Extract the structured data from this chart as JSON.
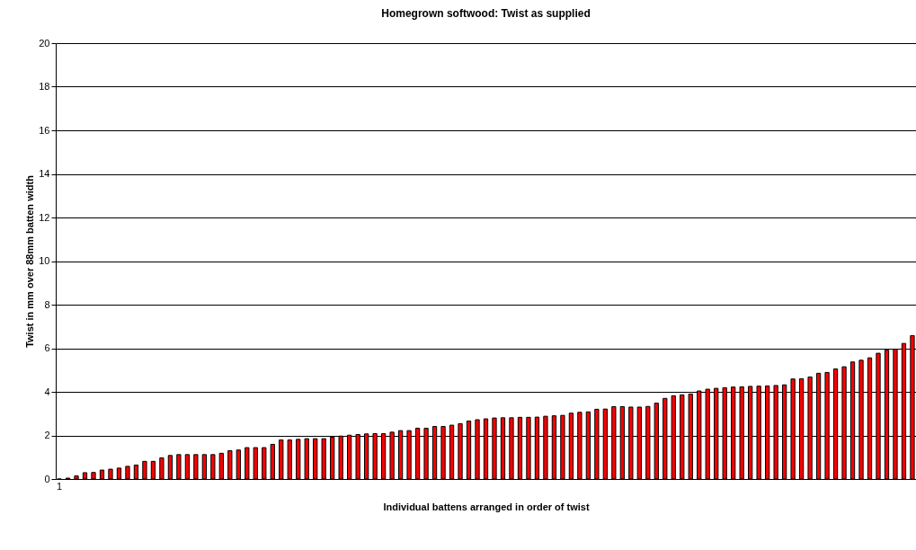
{
  "chart_data": {
    "type": "bar",
    "title": "Homegrown softwood: Twist as supplied",
    "xlabel": "Individual battens arranged in order of twist",
    "ylabel": "Twist in mm over 88mm batten width",
    "categories": [
      "1",
      null,
      null,
      null,
      null,
      null,
      null,
      null,
      null,
      null,
      null,
      null,
      null,
      null,
      null,
      null,
      null,
      null,
      null,
      null,
      null,
      null,
      null,
      null,
      null,
      null,
      null,
      null,
      null,
      null,
      null,
      null,
      null,
      null,
      null,
      null,
      null,
      null,
      null,
      null,
      null,
      null,
      null,
      null,
      null,
      null,
      null,
      null,
      null,
      null,
      null,
      null,
      null,
      null,
      null,
      null,
      null,
      null,
      null,
      null,
      null,
      null,
      null,
      null,
      null,
      null,
      null,
      null,
      null,
      null,
      null,
      null,
      null,
      null,
      null,
      null,
      null,
      null,
      null,
      null,
      null,
      null,
      null,
      null,
      null,
      null,
      null,
      null,
      null,
      null,
      null,
      null,
      null,
      null,
      null,
      null,
      null,
      null,
      null,
      null,
      null
    ],
    "series": [
      {
        "color": "#ff0000",
        "values": [
          0.0,
          0.04,
          0.14,
          0.29,
          0.3,
          0.41,
          0.45,
          0.5,
          0.58,
          0.64,
          0.81,
          0.81,
          0.97,
          1.08,
          1.12,
          1.12,
          1.12,
          1.12,
          1.12,
          1.18,
          1.3,
          1.33,
          1.44,
          1.44,
          1.44,
          1.59,
          1.79,
          1.79,
          1.82,
          1.85,
          1.85,
          1.85,
          1.92,
          1.97,
          2.01,
          2.04,
          2.07,
          2.08,
          2.08,
          2.15,
          2.22,
          2.22,
          2.33,
          2.33,
          2.41,
          2.41,
          2.47,
          2.54,
          2.66,
          2.72,
          2.76,
          2.8,
          2.81,
          2.81,
          2.83,
          2.83,
          2.84,
          2.88,
          2.9,
          2.92,
          3.02,
          3.06,
          3.08,
          3.2,
          3.21,
          3.32,
          3.32,
          3.3,
          3.3,
          3.33,
          3.48,
          3.7,
          3.82,
          3.86,
          3.9,
          4.04,
          4.12,
          4.16,
          4.19,
          4.22,
          4.23,
          4.25,
          4.26,
          4.27,
          4.29,
          4.32,
          4.59,
          4.6,
          4.68,
          4.85,
          4.89,
          5.05,
          5.15,
          5.37,
          5.45,
          5.56,
          5.77,
          5.92,
          5.96,
          6.22,
          6.58
        ]
      }
    ],
    "ylim": [
      0,
      20
    ],
    "yticks": [
      0,
      2,
      4,
      6,
      8,
      10,
      12,
      14,
      16,
      18,
      20
    ],
    "grid": "y",
    "legend": false
  }
}
